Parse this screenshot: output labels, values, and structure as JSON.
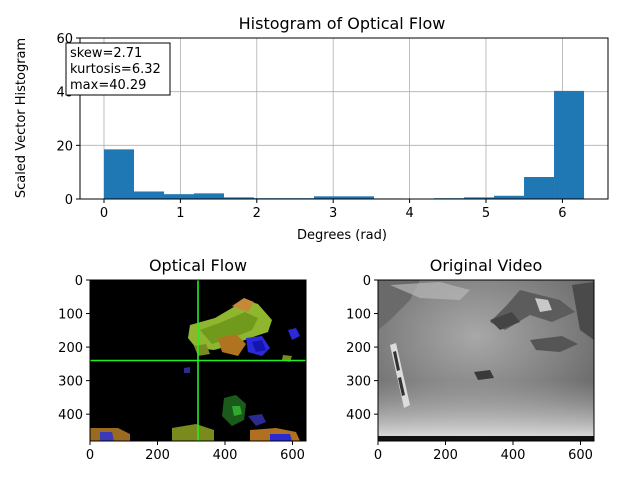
{
  "colors": {
    "bar": "#1f77b4",
    "grid": "#b0b0b0",
    "crosshair": "#22ee22",
    "flow_bg": "#000000",
    "video_bg": "#8a8a8a"
  },
  "chart_data": [
    {
      "type": "bar",
      "title": "Histogram of Optical Flow",
      "xlabel": "Degrees (rad)",
      "ylabel": "Scaled Vector Histogram",
      "xlim": [
        -0.314,
        6.597
      ],
      "ylim": [
        0,
        60
      ],
      "xticks": [
        "0",
        "1",
        "2",
        "3",
        "4",
        "5",
        "6"
      ],
      "yticks": [
        "0",
        "20",
        "40",
        "60"
      ],
      "grid": true,
      "bin_edges": [
        0,
        0.3927,
        0.7854,
        1.1781,
        1.5708,
        1.9635,
        2.3562,
        2.7489,
        3.1416,
        3.5343,
        3.927,
        4.3197,
        4.7124,
        5.1051,
        5.4978,
        5.8905,
        6.2832
      ],
      "values": [
        18.5,
        2.8,
        1.8,
        2.1,
        0.6,
        0.3,
        0.3,
        1.0,
        1.0,
        0.2,
        0.0,
        0.3,
        0.6,
        1.2,
        8.2,
        40.29
      ],
      "stats": [
        "skew=2.71",
        "kurtosis=6.32",
        "max=40.29"
      ],
      "stats_position": "top-left"
    },
    {
      "type": "image",
      "title": "Optical Flow",
      "xticks": [
        "0",
        "200",
        "400",
        "600"
      ],
      "yticks": [
        "0",
        "100",
        "200",
        "300",
        "400"
      ],
      "extent_x": [
        0,
        640
      ],
      "extent_y": [
        480,
        0
      ],
      "crosshair": {
        "x": 320,
        "y": 240
      }
    },
    {
      "type": "image",
      "title": "Original Video",
      "xticks": [
        "0",
        "200",
        "400",
        "600"
      ],
      "yticks": [
        "0",
        "100",
        "200",
        "300",
        "400"
      ],
      "extent_x": [
        0,
        640
      ],
      "extent_y": [
        480,
        0
      ]
    }
  ]
}
